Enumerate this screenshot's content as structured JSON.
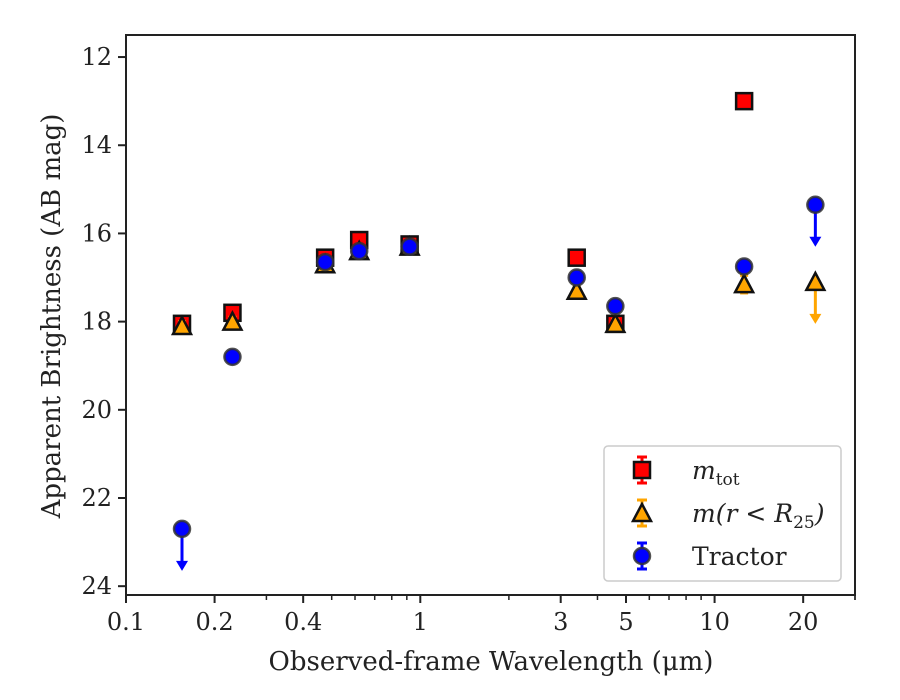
{
  "chart_data": {
    "type": "scatter",
    "xlabel": "Observed-frame Wavelength (μm)",
    "ylabel": "Apparent Brightness (AB mag)",
    "xscale": "log",
    "xlim": [
      0.1,
      30
    ],
    "ylim": [
      24.2,
      11.5
    ],
    "y_inverted": true,
    "xticks": [
      0.1,
      0.2,
      0.4,
      1,
      3,
      5,
      10,
      20
    ],
    "xtick_labels": [
      "0.1",
      "0.2",
      "0.4",
      "1",
      "3",
      "5",
      "10",
      "20"
    ],
    "yticks": [
      12,
      14,
      16,
      18,
      20,
      22,
      24
    ],
    "ytick_labels": [
      "12",
      "14",
      "16",
      "18",
      "20",
      "22",
      "24"
    ],
    "grid": false,
    "legend_position": "lower-right",
    "series": [
      {
        "name": "m_tot",
        "legend_label": "m",
        "legend_subscript": "tot",
        "marker": "square",
        "color": "#ff0000",
        "points": [
          {
            "x": 0.155,
            "y": 18.05,
            "err": 0.15
          },
          {
            "x": 0.23,
            "y": 17.8,
            "err": 0.15
          },
          {
            "x": 0.475,
            "y": 16.55,
            "err": 0.1
          },
          {
            "x": 0.62,
            "y": 16.15,
            "err": 0.1
          },
          {
            "x": 0.92,
            "y": 16.25,
            "err": 0.1
          },
          {
            "x": 3.4,
            "y": 16.55,
            "err": 0.1
          },
          {
            "x": 4.6,
            "y": 18.05,
            "err": 0.1
          },
          {
            "x": 12.6,
            "y": 13.0,
            "err": 0.1
          }
        ]
      },
      {
        "name": "m(r < R25)",
        "legend_label": "m(r < R",
        "legend_subscript": "25",
        "legend_suffix": ")",
        "marker": "triangle",
        "color": "#ffa500",
        "points": [
          {
            "x": 0.155,
            "y": 18.1,
            "err": 0.1
          },
          {
            "x": 0.23,
            "y": 18.0,
            "err": 0.1
          },
          {
            "x": 0.475,
            "y": 16.7,
            "err": 0.1
          },
          {
            "x": 0.62,
            "y": 16.4,
            "err": 0.1
          },
          {
            "x": 0.92,
            "y": 16.3,
            "err": 0.1
          },
          {
            "x": 3.4,
            "y": 17.3,
            "err": 0.1
          },
          {
            "x": 4.6,
            "y": 18.05,
            "err": 0.1
          },
          {
            "x": 12.6,
            "y": 17.15,
            "err": 0.2
          },
          {
            "x": 22.0,
            "y": 17.1,
            "upper_limit": true
          }
        ]
      },
      {
        "name": "Tractor",
        "legend_label": "Tractor",
        "marker": "circle",
        "color": "#0000ff",
        "points": [
          {
            "x": 0.155,
            "y": 22.7,
            "upper_limit": true
          },
          {
            "x": 0.23,
            "y": 18.8,
            "err": 0.1
          },
          {
            "x": 0.475,
            "y": 16.65,
            "err": 0.1
          },
          {
            "x": 0.62,
            "y": 16.4,
            "err": 0.1
          },
          {
            "x": 0.92,
            "y": 16.3,
            "err": 0.1
          },
          {
            "x": 3.4,
            "y": 17.0,
            "err": 0.1
          },
          {
            "x": 4.6,
            "y": 17.65,
            "err": 0.1
          },
          {
            "x": 12.6,
            "y": 16.75,
            "err": 0.1
          },
          {
            "x": 22.0,
            "y": 15.35,
            "upper_limit": true
          }
        ]
      }
    ]
  }
}
